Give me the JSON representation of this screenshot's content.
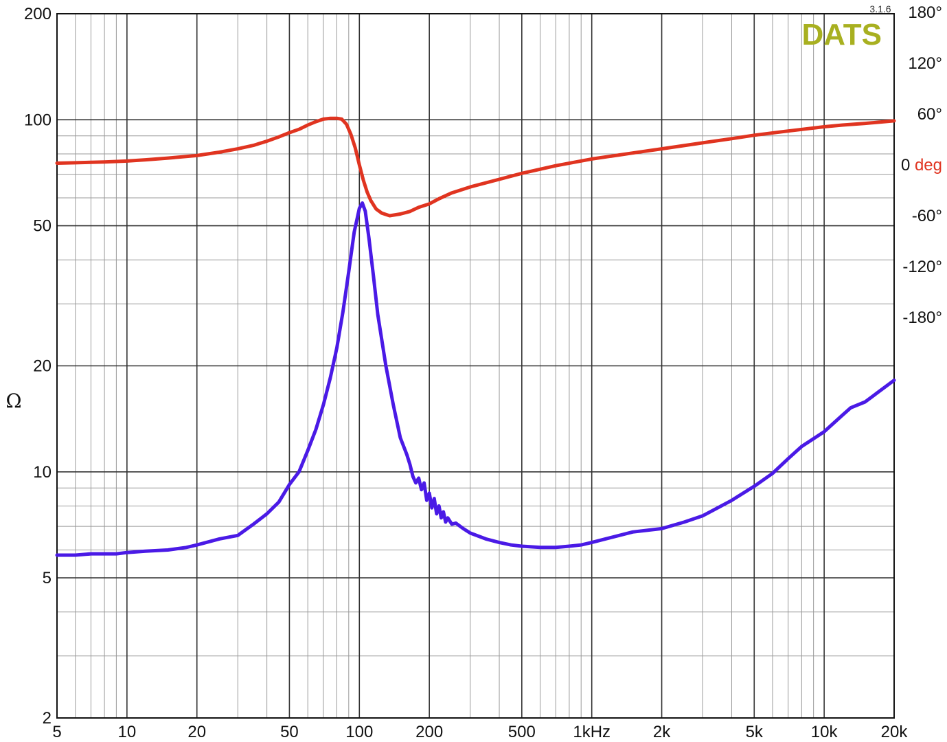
{
  "chart_data": {
    "type": "line",
    "brand": "DATS",
    "version": "3.1.6",
    "ylabel": "Ω",
    "x_scale": "log",
    "y_scale": "log",
    "xlim": [
      5,
      20000
    ],
    "ylim": [
      2,
      200
    ],
    "y2lim": [
      -180,
      180
    ],
    "grid": true,
    "x_ticks": [
      {
        "v": 5,
        "label": "5"
      },
      {
        "v": 10,
        "label": "10"
      },
      {
        "v": 20,
        "label": "20"
      },
      {
        "v": 50,
        "label": "50"
      },
      {
        "v": 100,
        "label": "100"
      },
      {
        "v": 200,
        "label": "200"
      },
      {
        "v": 500,
        "label": "500"
      },
      {
        "v": 1000,
        "label": "1kHz"
      },
      {
        "v": 2000,
        "label": "2k"
      },
      {
        "v": 5000,
        "label": "5k"
      },
      {
        "v": 10000,
        "label": "10k"
      },
      {
        "v": 20000,
        "label": "20k"
      }
    ],
    "y_ticks": [
      {
        "v": 200,
        "label": "200"
      },
      {
        "v": 100,
        "label": "100"
      },
      {
        "v": 50,
        "label": "50"
      },
      {
        "v": 20,
        "label": "20"
      },
      {
        "v": 10,
        "label": "10"
      },
      {
        "v": 5,
        "label": "5"
      },
      {
        "v": 2,
        "label": "2"
      }
    ],
    "y2_ticks": [
      {
        "v": 180,
        "label": "180°"
      },
      {
        "v": 120,
        "label": "120°"
      },
      {
        "v": 60,
        "label": "60°"
      },
      {
        "v": 0,
        "label": "0",
        "unit": "deg"
      },
      {
        "v": -60,
        "label": "-60°"
      },
      {
        "v": -120,
        "label": "-120°"
      },
      {
        "v": -180,
        "label": "-180°"
      }
    ],
    "series": [
      {
        "axis": "left",
        "color": "#4a1ae6",
        "points": [
          [
            5,
            5.8
          ],
          [
            6,
            5.8
          ],
          [
            7,
            5.85
          ],
          [
            8,
            5.85
          ],
          [
            9,
            5.85
          ],
          [
            10,
            5.9
          ],
          [
            12,
            5.95
          ],
          [
            15,
            6.0
          ],
          [
            18,
            6.1
          ],
          [
            20,
            6.2
          ],
          [
            25,
            6.45
          ],
          [
            30,
            6.6
          ],
          [
            35,
            7.1
          ],
          [
            40,
            7.6
          ],
          [
            45,
            8.2
          ],
          [
            50,
            9.2
          ],
          [
            55,
            10.0
          ],
          [
            60,
            11.5
          ],
          [
            65,
            13.2
          ],
          [
            70,
            15.5
          ],
          [
            75,
            18.5
          ],
          [
            80,
            22.5
          ],
          [
            85,
            28.5
          ],
          [
            90,
            37
          ],
          [
            95,
            48
          ],
          [
            100,
            56
          ],
          [
            103,
            58
          ],
          [
            106,
            55
          ],
          [
            110,
            46
          ],
          [
            115,
            36
          ],
          [
            120,
            28
          ],
          [
            130,
            20
          ],
          [
            140,
            15.5
          ],
          [
            150,
            12.5
          ],
          [
            160,
            11.2
          ],
          [
            165,
            10.5
          ],
          [
            170,
            9.7
          ],
          [
            175,
            9.3
          ],
          [
            180,
            9.6
          ],
          [
            185,
            8.9
          ],
          [
            190,
            9.3
          ],
          [
            195,
            8.3
          ],
          [
            200,
            8.7
          ],
          [
            205,
            7.9
          ],
          [
            210,
            8.4
          ],
          [
            215,
            7.6
          ],
          [
            220,
            8.0
          ],
          [
            225,
            7.4
          ],
          [
            230,
            7.7
          ],
          [
            235,
            7.2
          ],
          [
            240,
            7.4
          ],
          [
            250,
            7.1
          ],
          [
            260,
            7.15
          ],
          [
            280,
            6.9
          ],
          [
            300,
            6.7
          ],
          [
            350,
            6.45
          ],
          [
            400,
            6.3
          ],
          [
            450,
            6.2
          ],
          [
            500,
            6.15
          ],
          [
            600,
            6.1
          ],
          [
            700,
            6.1
          ],
          [
            800,
            6.15
          ],
          [
            900,
            6.2
          ],
          [
            1000,
            6.3
          ],
          [
            1200,
            6.5
          ],
          [
            1500,
            6.75
          ],
          [
            2000,
            6.9
          ],
          [
            2500,
            7.2
          ],
          [
            3000,
            7.5
          ],
          [
            4000,
            8.3
          ],
          [
            5000,
            9.1
          ],
          [
            6000,
            9.9
          ],
          [
            7000,
            10.9
          ],
          [
            8000,
            11.8
          ],
          [
            10000,
            13.0
          ],
          [
            12000,
            14.5
          ],
          [
            13000,
            15.2
          ],
          [
            15000,
            15.8
          ],
          [
            17000,
            16.8
          ],
          [
            20000,
            18.2
          ]
        ]
      },
      {
        "axis": "right",
        "color": "#e03420",
        "points": [
          [
            5,
            2
          ],
          [
            6,
            2.5
          ],
          [
            8,
            3.5
          ],
          [
            10,
            4.5
          ],
          [
            12,
            6
          ],
          [
            15,
            8
          ],
          [
            20,
            11
          ],
          [
            25,
            15
          ],
          [
            30,
            19
          ],
          [
            35,
            23
          ],
          [
            40,
            28
          ],
          [
            45,
            33
          ],
          [
            50,
            38
          ],
          [
            55,
            42
          ],
          [
            60,
            47
          ],
          [
            65,
            51
          ],
          [
            70,
            54
          ],
          [
            75,
            55
          ],
          [
            80,
            55
          ],
          [
            84,
            54
          ],
          [
            88,
            48
          ],
          [
            92,
            36
          ],
          [
            96,
            20
          ],
          [
            100,
            0
          ],
          [
            104,
            -18
          ],
          [
            108,
            -32
          ],
          [
            112,
            -42
          ],
          [
            118,
            -52
          ],
          [
            125,
            -57
          ],
          [
            135,
            -60
          ],
          [
            150,
            -58
          ],
          [
            165,
            -55
          ],
          [
            180,
            -50
          ],
          [
            200,
            -46
          ],
          [
            220,
            -40
          ],
          [
            250,
            -33
          ],
          [
            300,
            -26
          ],
          [
            400,
            -17
          ],
          [
            500,
            -10
          ],
          [
            700,
            -1
          ],
          [
            1000,
            7
          ],
          [
            1500,
            14
          ],
          [
            2000,
            19
          ],
          [
            3000,
            26
          ],
          [
            4000,
            31
          ],
          [
            5000,
            35
          ],
          [
            7000,
            40
          ],
          [
            10000,
            45
          ],
          [
            12000,
            47
          ],
          [
            15000,
            49
          ],
          [
            20000,
            52
          ]
        ]
      }
    ]
  }
}
